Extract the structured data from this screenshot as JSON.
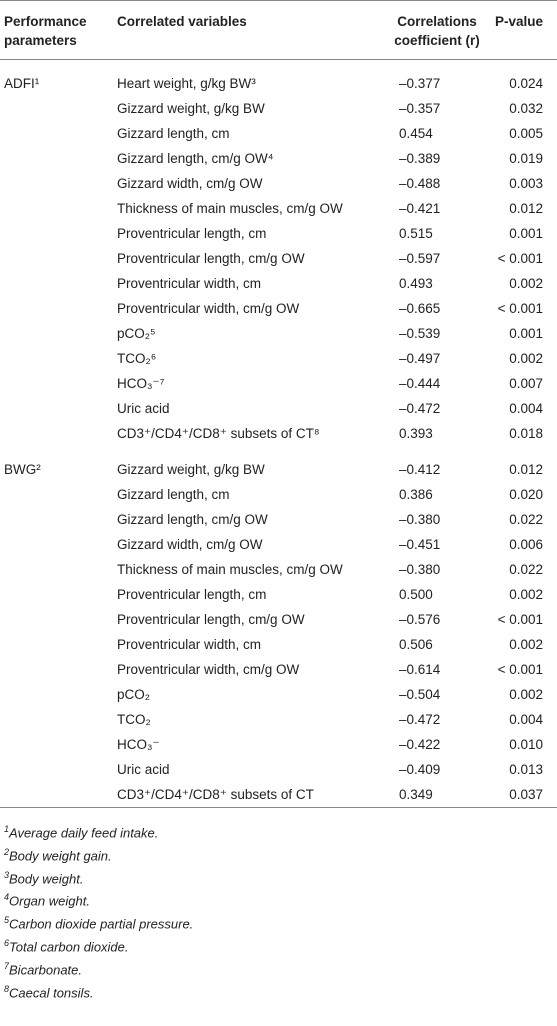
{
  "table": {
    "header": [
      "Performance parameters",
      "Correlated variables",
      "Correlations coefficient (r)",
      "P-value"
    ],
    "groups": [
      {
        "parameter": "ADFI¹",
        "rows": [
          [
            "Heart weight, g/kg BW³",
            "–0.377",
            "0.024"
          ],
          [
            "Gizzard weight, g/kg BW",
            "–0.357",
            "0.032"
          ],
          [
            "Gizzard length, cm",
            "0.454",
            "0.005"
          ],
          [
            "Gizzard length, cm/g OW⁴",
            "–0.389",
            "0.019"
          ],
          [
            "Gizzard width, cm/g OW",
            "–0.488",
            "0.003"
          ],
          [
            "Thickness of main muscles, cm/g OW",
            "–0.421",
            "0.012"
          ],
          [
            "Proventricular length, cm",
            "0.515",
            "0.001"
          ],
          [
            "Proventricular length, cm/g OW",
            "–0.597",
            "< 0.001"
          ],
          [
            "Proventricular width, cm",
            "0.493",
            "0.002"
          ],
          [
            "Proventricular width, cm/g OW",
            "–0.665",
            "< 0.001"
          ],
          [
            "pCO₂⁵",
            "–0.539",
            "0.001"
          ],
          [
            "TCO₂⁶",
            "–0.497",
            "0.002"
          ],
          [
            "HCO₃⁻⁷",
            "–0.444",
            "0.007"
          ],
          [
            "Uric acid",
            "–0.472",
            "0.004"
          ],
          [
            "CD3⁺/CD4⁺/CD8⁺ subsets of CT⁸",
            "0.393",
            "0.018"
          ]
        ]
      },
      {
        "parameter": "BWG²",
        "rows": [
          [
            "Gizzard weight, g/kg BW",
            "–0.412",
            "0.012"
          ],
          [
            "Gizzard length, cm",
            "0.386",
            "0.020"
          ],
          [
            "Gizzard length, cm/g OW",
            "–0.380",
            "0.022"
          ],
          [
            "Gizzard width, cm/g OW",
            "–0.451",
            "0.006"
          ],
          [
            "Thickness of main muscles, cm/g OW",
            "–0.380",
            "0.022"
          ],
          [
            "Proventricular length, cm",
            "0.500",
            "0.002"
          ],
          [
            "Proventricular length, cm/g OW",
            "–0.576",
            "< 0.001"
          ],
          [
            "Proventricular width, cm",
            "0.506",
            "0.002"
          ],
          [
            "Proventricular width, cm/g OW",
            "–0.614",
            "< 0.001"
          ],
          [
            "pCO₂",
            "–0.504",
            "0.002"
          ],
          [
            "TCO₂",
            "–0.472",
            "0.004"
          ],
          [
            "HCO₃⁻",
            "–0.422",
            "0.010"
          ],
          [
            "Uric acid",
            "–0.409",
            "0.013"
          ],
          [
            "CD3⁺/CD4⁺/CD8⁺ subsets of CT",
            "0.349",
            "0.037"
          ]
        ]
      }
    ]
  },
  "footnotes": [
    {
      "mark": "1",
      "text": "Average daily feed intake."
    },
    {
      "mark": "2",
      "text": "Body weight gain."
    },
    {
      "mark": "3",
      "text": "Body weight."
    },
    {
      "mark": "4",
      "text": "Organ weight."
    },
    {
      "mark": "5",
      "text": "Carbon dioxide partial pressure."
    },
    {
      "mark": "6",
      "text": "Total carbon dioxide."
    },
    {
      "mark": "7",
      "text": "Bicarbonate."
    },
    {
      "mark": "8",
      "text": "Caecal tonsils."
    }
  ]
}
